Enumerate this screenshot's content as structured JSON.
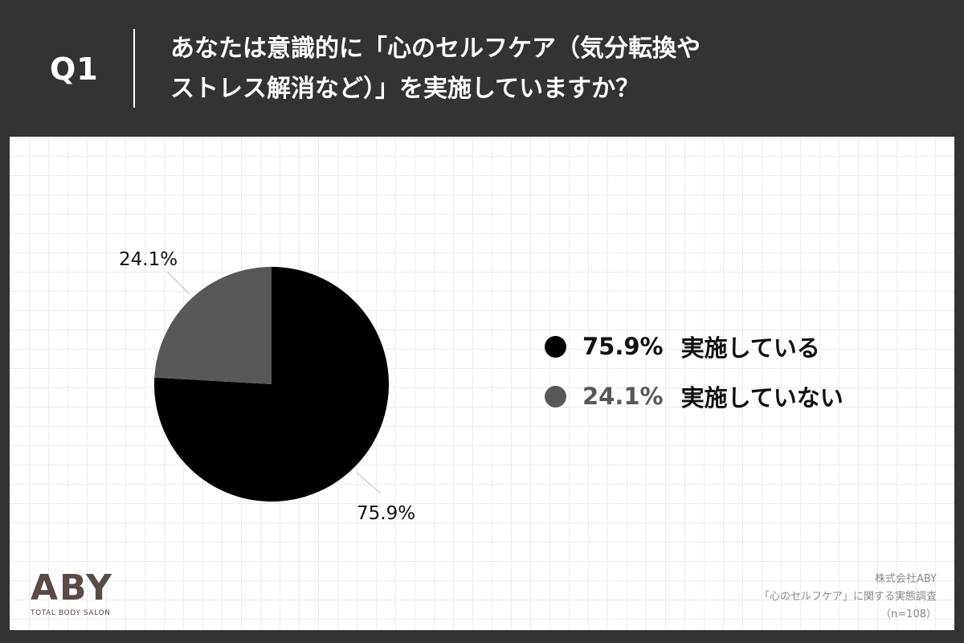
{
  "header": {
    "q_label": "Q1",
    "question_line1": "あなたは意識的に「心のセルフケア（気分転換や",
    "question_line2": "ストレス解消など）」を実施していますか？"
  },
  "chart_data": {
    "type": "pie",
    "title": "",
    "categories": [
      "実施している",
      "実施していない"
    ],
    "values": [
      75.9,
      24.1
    ],
    "value_labels": [
      "75.9%",
      "24.1%"
    ],
    "colors": [
      "#000000",
      "#585858"
    ],
    "legend_position": "right"
  },
  "legend": {
    "items": [
      {
        "value": "75.9%",
        "label": "実施している",
        "color": "#000000",
        "value_color": "#111111"
      },
      {
        "value": "24.1%",
        "label": "実施していない",
        "color": "#585858",
        "value_color": "#585858"
      }
    ]
  },
  "logo": {
    "mark": "ABY",
    "subtitle": "TOTAL BODY SALON"
  },
  "footer": {
    "company": "株式会社ABY",
    "survey": "「心のセルフケア」に関する実態調査",
    "sample": "（n=108）"
  }
}
